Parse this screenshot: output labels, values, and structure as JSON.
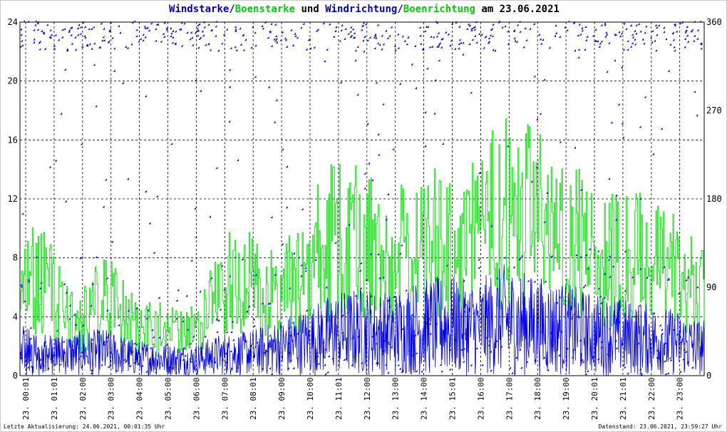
{
  "title": {
    "part1": "Windstarke",
    "sep1": "/",
    "part2": "Boenstarke",
    "part3": " und ",
    "part4": "Windrichtung",
    "sep2": "/",
    "part5": "Boenrichtung",
    "part6": " am 23.06.2021"
  },
  "footer": {
    "left": "Letzte Aktualisierung: 24.06.2021, 00:01:35 Uhr",
    "right": "Datenstand: 23.06.2021, 23:59:27 Uhr"
  },
  "colors": {
    "speed": "#0000ee",
    "gust": "#00dd00",
    "grid": "#000000"
  },
  "chart_data": {
    "type": "line",
    "x_tick_labels": [
      "23. 00:01",
      "23. 01:01",
      "23. 02:00",
      "23. 03:00",
      "23. 04:00",
      "23. 05:00",
      "23. 06:00",
      "23. 07:00",
      "23. 08:01",
      "23. 09:00",
      "23. 10:00",
      "23. 11:01",
      "23. 12:00",
      "23. 13:00",
      "23. 14:00",
      "23. 15:01",
      "23. 16:00",
      "23. 17:00",
      "23. 18:00",
      "23. 19:00",
      "23. 20:01",
      "23. 21:01",
      "23. 22:00",
      "23. 23:00"
    ],
    "y_left": {
      "ticks": [
        0,
        4,
        8,
        12,
        16,
        20,
        24
      ],
      "range": [
        0,
        24
      ]
    },
    "y_right": {
      "ticks": [
        0,
        90,
        180,
        270,
        360
      ],
      "range": [
        0,
        360
      ]
    },
    "x_range_hours": [
      0,
      24
    ],
    "series": [
      {
        "name": "Windstarke",
        "color": "#0000ee",
        "kind": "line",
        "x_hours": [
          0,
          1,
          2,
          3,
          4,
          5,
          6,
          7,
          8,
          9,
          10,
          11,
          12,
          13,
          14,
          15,
          16,
          17,
          18,
          19,
          20,
          21,
          22,
          23,
          24
        ],
        "values": [
          1.8,
          1.5,
          1.6,
          1.7,
          1.3,
          1.2,
          1.1,
          1.5,
          1.6,
          2.0,
          2.4,
          3.0,
          3.2,
          3.0,
          3.5,
          3.6,
          3.4,
          4.0,
          3.6,
          3.4,
          3.0,
          2.8,
          2.6,
          2.4,
          2.0
        ]
      },
      {
        "name": "Boenstarke",
        "color": "#00dd00",
        "kind": "line",
        "x_hours": [
          0,
          1,
          2,
          3,
          4,
          5,
          6,
          7,
          8,
          9,
          10,
          11,
          12,
          13,
          14,
          15,
          16,
          17,
          18,
          19,
          20,
          21,
          22,
          23,
          24
        ],
        "values": [
          7.5,
          7.0,
          4.0,
          6.0,
          4.0,
          3.5,
          3.5,
          7.0,
          7.0,
          6.0,
          8.0,
          11.0,
          10.0,
          9.0,
          10.5,
          10.0,
          10.5,
          13.0,
          12.0,
          11.0,
          10.0,
          9.0,
          9.0,
          8.0,
          6.0
        ]
      },
      {
        "name": "Windrichtung",
        "color": "#0000ee",
        "kind": "scatter",
        "axis": "right",
        "x_hours": [
          0.1,
          0.4,
          0.8,
          1.2,
          1.7,
          2.3,
          2.9,
          3.5,
          4.1,
          4.8,
          5.4,
          6.2,
          6.9,
          7.6,
          8.3,
          9.0,
          9.7,
          10.4,
          11.1,
          11.8,
          12.5,
          13.2,
          13.9,
          14.6,
          15.3,
          16.0,
          16.7,
          17.4,
          18.1,
          18.8,
          19.5,
          20.2,
          20.9,
          21.6,
          22.3,
          23.0,
          23.7
        ],
        "values": [
          340,
          15,
          350,
          20,
          330,
          345,
          10,
          355,
          25,
          340,
          350,
          300,
          345,
          350,
          335,
          340,
          345,
          20,
          350,
          320,
          345,
          330,
          40,
          300,
          35,
          345,
          330,
          340,
          15,
          345,
          330,
          340,
          320,
          350,
          340,
          330,
          345
        ]
      },
      {
        "name": "Boenrichtung",
        "color": "#00dd00",
        "kind": "scatter",
        "axis": "right",
        "x_hours": [
          0.3,
          1.0,
          1.9,
          2.7,
          3.6,
          4.4,
          5.2,
          6.1,
          7.0,
          7.8,
          8.7,
          9.5,
          10.3,
          11.2,
          12.0,
          12.9,
          13.7,
          14.5,
          15.4,
          16.2,
          17.1,
          17.9,
          18.7,
          19.6,
          20.4,
          21.3,
          22.1,
          23.0,
          23.8
        ],
        "values": [
          350,
          340,
          355,
          345,
          355,
          10,
          350,
          340,
          355,
          345,
          335,
          340,
          350,
          350,
          335,
          345,
          120,
          350,
          330,
          345,
          350,
          340,
          320,
          345,
          340,
          330,
          325,
          340,
          350
        ]
      }
    ]
  }
}
